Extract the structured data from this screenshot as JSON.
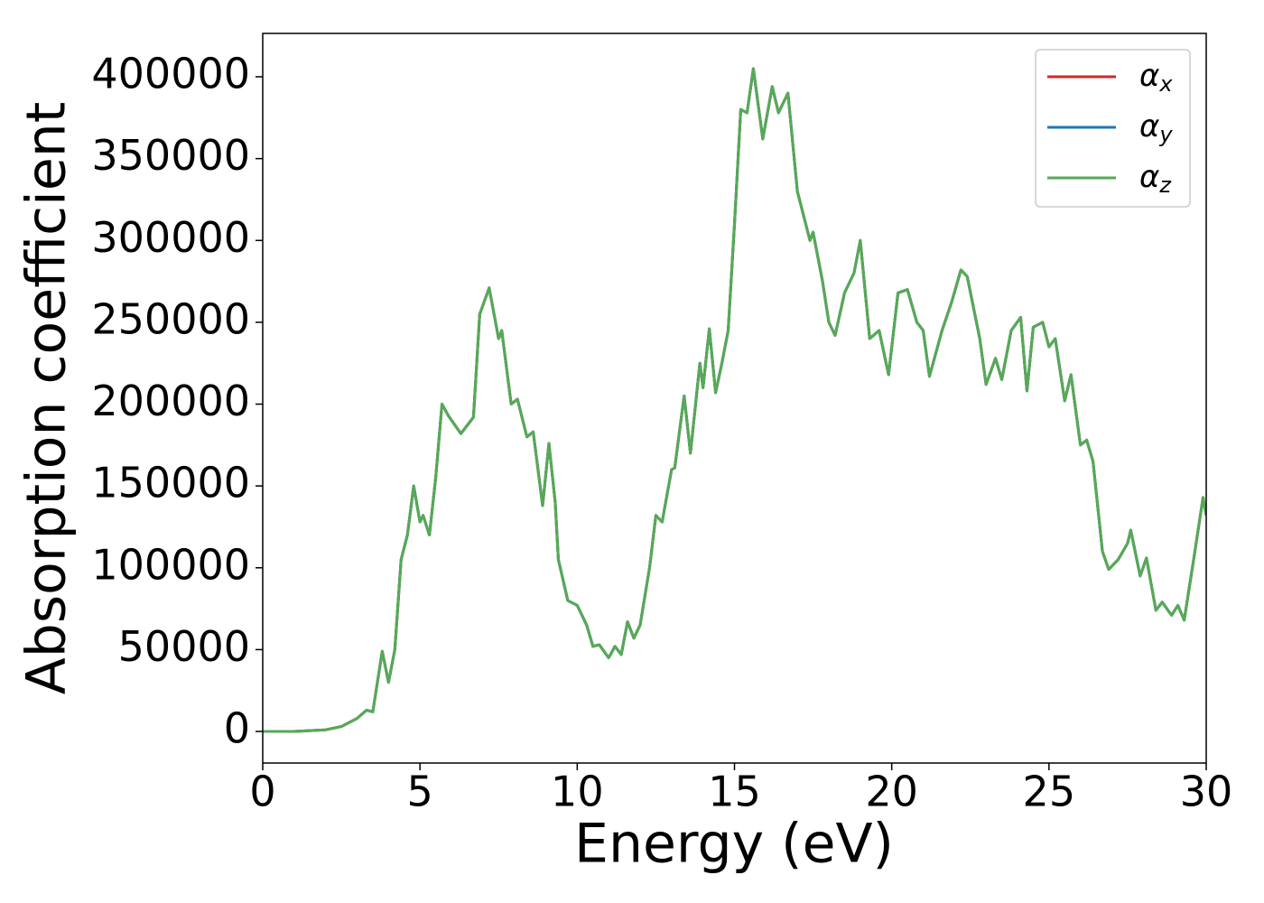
{
  "chart_data": {
    "type": "line",
    "xlabel": "Energy (eV)",
    "ylabel": "Absorption coefficient",
    "x": [
      0,
      1,
      2,
      2.5,
      3,
      3.3,
      3.5,
      3.8,
      4.0,
      4.2,
      4.4,
      4.6,
      4.8,
      5.0,
      5.1,
      5.3,
      5.5,
      5.7,
      5.9,
      6.3,
      6.7,
      6.9,
      7.2,
      7.5,
      7.6,
      7.9,
      8.1,
      8.4,
      8.6,
      8.9,
      9.1,
      9.3,
      9.4,
      9.7,
      10.0,
      10.3,
      10.5,
      10.7,
      11.0,
      11.2,
      11.4,
      11.6,
      11.8,
      12.0,
      12.3,
      12.5,
      12.7,
      13.0,
      13.1,
      13.4,
      13.6,
      13.9,
      14.0,
      14.2,
      14.4,
      14.6,
      14.8,
      15.0,
      15.2,
      15.4,
      15.6,
      15.9,
      16.2,
      16.4,
      16.7,
      17.0,
      17.2,
      17.4,
      17.5,
      17.8,
      18.0,
      18.2,
      18.5,
      18.8,
      19.0,
      19.3,
      19.6,
      19.9,
      20.2,
      20.5,
      20.8,
      21.0,
      21.2,
      21.6,
      21.9,
      22.2,
      22.4,
      22.8,
      23.0,
      23.3,
      23.5,
      23.8,
      24.1,
      24.3,
      24.5,
      24.8,
      25.0,
      25.2,
      25.5,
      25.7,
      26.0,
      26.2,
      26.4,
      26.7,
      26.9,
      27.2,
      27.5,
      27.6,
      27.9,
      28.1,
      28.4,
      28.6,
      28.9,
      29.1,
      29.3,
      29.6,
      29.9,
      30
    ],
    "series": [
      {
        "name": "αx",
        "color": "#d62728",
        "values": [
          0,
          0,
          1000,
          3000,
          8000,
          13000,
          12000,
          49000,
          30000,
          50000,
          105000,
          120000,
          150000,
          128000,
          132000,
          120000,
          155000,
          200000,
          193000,
          182000,
          192000,
          255000,
          271000,
          240000,
          245000,
          200000,
          203000,
          180000,
          183000,
          138000,
          176000,
          140000,
          105000,
          80000,
          77000,
          65000,
          52000,
          53000,
          45000,
          52000,
          47000,
          67000,
          57000,
          65000,
          100000,
          132000,
          128000,
          160000,
          161000,
          205000,
          170000,
          225000,
          210000,
          246000,
          207000,
          225000,
          245000,
          310000,
          380000,
          378000,
          405000,
          362000,
          394000,
          378000,
          390000,
          330000,
          315000,
          300000,
          305000,
          275000,
          250000,
          242000,
          268000,
          280000,
          300000,
          240000,
          245000,
          218000,
          268000,
          270000,
          250000,
          245000,
          217000,
          245000,
          262000,
          282000,
          278000,
          240000,
          212000,
          228000,
          215000,
          245000,
          253000,
          208000,
          247000,
          250000,
          235000,
          240000,
          202000,
          218000,
          175000,
          178000,
          165000,
          110000,
          99000,
          105000,
          115000,
          123000,
          95000,
          106000,
          74000,
          79000,
          71000,
          77000,
          68000,
          105000,
          143000,
          132000
        ]
      },
      {
        "name": "αy",
        "color": "#1f77b4",
        "values": [
          0,
          0,
          1000,
          3000,
          8000,
          13000,
          12000,
          49000,
          30000,
          50000,
          105000,
          120000,
          150000,
          128000,
          132000,
          120000,
          155000,
          200000,
          193000,
          182000,
          192000,
          255000,
          271000,
          240000,
          245000,
          200000,
          203000,
          180000,
          183000,
          138000,
          176000,
          140000,
          105000,
          80000,
          77000,
          65000,
          52000,
          53000,
          45000,
          52000,
          47000,
          67000,
          57000,
          65000,
          100000,
          132000,
          128000,
          160000,
          161000,
          205000,
          170000,
          225000,
          210000,
          246000,
          207000,
          225000,
          245000,
          310000,
          380000,
          378000,
          405000,
          362000,
          394000,
          378000,
          390000,
          330000,
          315000,
          300000,
          305000,
          275000,
          250000,
          242000,
          268000,
          280000,
          300000,
          240000,
          245000,
          218000,
          268000,
          270000,
          250000,
          245000,
          217000,
          245000,
          262000,
          282000,
          278000,
          240000,
          212000,
          228000,
          215000,
          245000,
          253000,
          208000,
          247000,
          250000,
          235000,
          240000,
          202000,
          218000,
          175000,
          178000,
          165000,
          110000,
          99000,
          105000,
          115000,
          123000,
          95000,
          106000,
          74000,
          79000,
          71000,
          77000,
          68000,
          105000,
          143000,
          132000
        ]
      },
      {
        "name": "αz",
        "color": "#55aa55",
        "values": [
          0,
          0,
          1000,
          3000,
          8000,
          13000,
          12000,
          49000,
          30000,
          50000,
          105000,
          120000,
          150000,
          128000,
          132000,
          120000,
          155000,
          200000,
          193000,
          182000,
          192000,
          255000,
          271000,
          240000,
          245000,
          200000,
          203000,
          180000,
          183000,
          138000,
          176000,
          140000,
          105000,
          80000,
          77000,
          65000,
          52000,
          53000,
          45000,
          52000,
          47000,
          67000,
          57000,
          65000,
          100000,
          132000,
          128000,
          160000,
          161000,
          205000,
          170000,
          225000,
          210000,
          246000,
          207000,
          225000,
          245000,
          310000,
          380000,
          378000,
          405000,
          362000,
          394000,
          378000,
          390000,
          330000,
          315000,
          300000,
          305000,
          275000,
          250000,
          242000,
          268000,
          280000,
          300000,
          240000,
          245000,
          218000,
          268000,
          270000,
          250000,
          245000,
          217000,
          245000,
          262000,
          282000,
          278000,
          240000,
          212000,
          228000,
          215000,
          245000,
          253000,
          208000,
          247000,
          250000,
          235000,
          240000,
          202000,
          218000,
          175000,
          178000,
          165000,
          110000,
          99000,
          105000,
          115000,
          123000,
          95000,
          106000,
          74000,
          79000,
          71000,
          77000,
          68000,
          105000,
          143000,
          132000
        ]
      }
    ],
    "xlim": [
      0,
      30
    ],
    "xticks": [
      0,
      5,
      10,
      15,
      20,
      25,
      30
    ],
    "ylim": [
      -19300,
      426500
    ],
    "yticks": [
      0,
      50000,
      100000,
      150000,
      200000,
      250000,
      300000,
      350000,
      400000
    ],
    "grid": false,
    "legend": "upper right"
  }
}
